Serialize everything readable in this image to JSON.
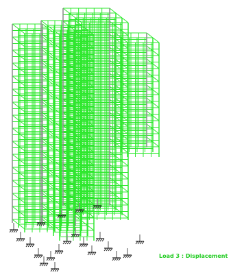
{
  "status_label": "Load 3 : Displacement"
}
